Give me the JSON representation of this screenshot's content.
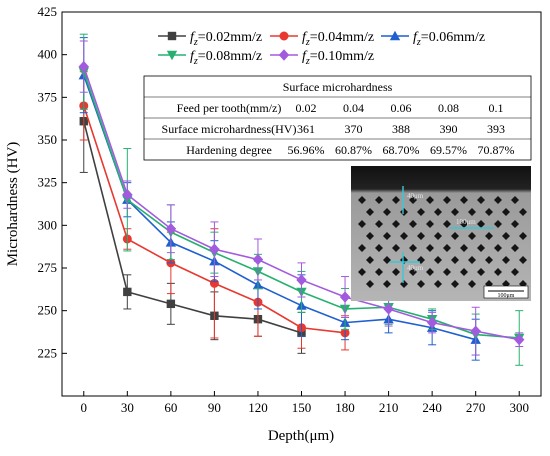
{
  "chart_data": {
    "type": "line",
    "xlabel": "Depth(μm)",
    "ylabel": "Microhardness (HV)",
    "xlim": [
      -15,
      315
    ],
    "ylim": [
      200,
      425
    ],
    "x_ticks": [
      0,
      30,
      60,
      90,
      120,
      150,
      180,
      210,
      240,
      270,
      300
    ],
    "y_ticks": [
      225,
      250,
      275,
      300,
      325,
      350,
      375,
      400,
      425
    ],
    "grid": false,
    "legend_position": "top-right",
    "x": [
      0,
      30,
      60,
      90,
      120,
      150,
      180,
      210,
      240,
      270,
      300
    ],
    "series": [
      {
        "name": "f_z=0.02mm/z",
        "legend_sub": "z",
        "legend_rest": "=0.02mm/z",
        "color": "#404040",
        "marker": "square",
        "values": [
          361,
          261,
          254,
          247,
          245,
          237,
          null,
          null,
          null,
          null,
          null
        ],
        "errors": [
          30,
          10,
          12,
          14,
          10,
          12,
          null,
          null,
          null,
          null,
          null
        ]
      },
      {
        "name": "f_z=0.04mm/z",
        "legend_sub": "z",
        "legend_rest": "=0.04mm/z",
        "color": "#e8382f",
        "marker": "circle",
        "values": [
          370,
          292,
          278,
          266,
          255,
          240,
          237,
          null,
          null,
          null,
          null
        ],
        "errors": [
          20,
          6,
          18,
          32,
          20,
          12,
          10,
          null,
          null,
          null,
          null
        ]
      },
      {
        "name": "f_z=0.06mm/z",
        "legend_sub": "z",
        "legend_rest": "=0.06mm/z",
        "color": "#1f5fcf",
        "marker": "triangle",
        "values": [
          388,
          315,
          290,
          279,
          265,
          253,
          243,
          245,
          240,
          233,
          null
        ],
        "errors": [
          22,
          10,
          12,
          12,
          14,
          18,
          10,
          8,
          10,
          12,
          null
        ]
      },
      {
        "name": "f_z=0.08mm/z",
        "legend_sub": "z",
        "legend_rest": "=0.08mm/z",
        "color": "#26b070",
        "marker": "triangle-down",
        "values": [
          390,
          315,
          296,
          284,
          273,
          261,
          251,
          252,
          245,
          236,
          234
        ],
        "errors": [
          22,
          30,
          16,
          12,
          10,
          12,
          12,
          10,
          6,
          12,
          16
        ]
      },
      {
        "name": "f_z=0.10mm/z",
        "legend_sub": "z",
        "legend_rest": "=0.10mm/z",
        "color": "#a25adf",
        "marker": "diamond",
        "values": [
          393,
          318,
          298,
          286,
          280,
          268,
          258,
          251,
          243,
          238,
          233
        ],
        "errors": [
          15,
          8,
          14,
          16,
          12,
          10,
          12,
          10,
          6,
          14,
          4
        ]
      }
    ],
    "inset_table": {
      "title": "Surface microhardness",
      "rows": [
        {
          "label": "Feed per tooth(mm/z)",
          "cells": [
            "0.02",
            "0.04",
            "0.06",
            "0.08",
            "0.1"
          ]
        },
        {
          "label": "Surface microhardness(HV)",
          "cells": [
            "361",
            "370",
            "388",
            "390",
            "393"
          ]
        },
        {
          "label": "Hardening degree",
          "cells": [
            "56.96%",
            "60.87%",
            "68.70%",
            "69.57%",
            "70.87%"
          ]
        }
      ]
    },
    "inset_image": {
      "labels": [
        "40μm",
        "100μm",
        "40μm"
      ],
      "scale_bar": "100μm"
    }
  },
  "legend_symbol": "f"
}
